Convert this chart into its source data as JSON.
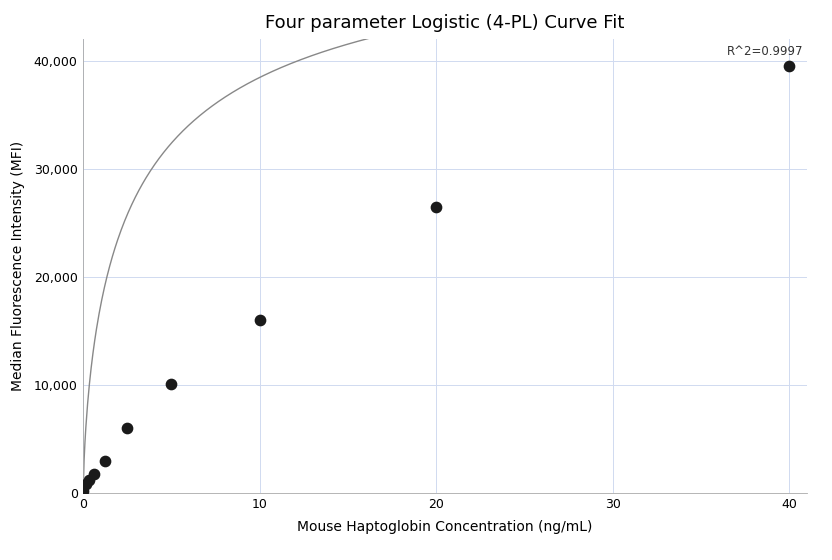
{
  "title": "Four parameter Logistic (4-PL) Curve Fit",
  "xlabel": "Mouse Haptoglobin Concentration (ng/mL)",
  "ylabel": "Median Fluorescence Intensity (MFI)",
  "scatter_x": [
    0.0,
    0.156,
    0.313,
    0.625,
    1.25,
    2.5,
    5.0,
    10.0,
    20.0,
    40.0
  ],
  "scatter_y": [
    200,
    800,
    1200,
    1700,
    2900,
    6000,
    10100,
    16000,
    26500,
    39500
  ],
  "xlim": [
    0,
    41
  ],
  "ylim": [
    0,
    42000
  ],
  "xticks": [
    0,
    10,
    20,
    30,
    40
  ],
  "yticks": [
    0,
    10000,
    20000,
    30000,
    40000
  ],
  "r_squared_text": "R^2=0.9997",
  "r2_x": 40.8,
  "r2_y": 41500,
  "dot_color": "#1a1a1a",
  "line_color": "#888888",
  "grid_color": "#d0daf0",
  "spine_color": "#aaaaaa",
  "background_color": "#ffffff",
  "title_fontsize": 13,
  "axis_label_fontsize": 10,
  "tick_fontsize": 9,
  "annotation_fontsize": 8.5
}
